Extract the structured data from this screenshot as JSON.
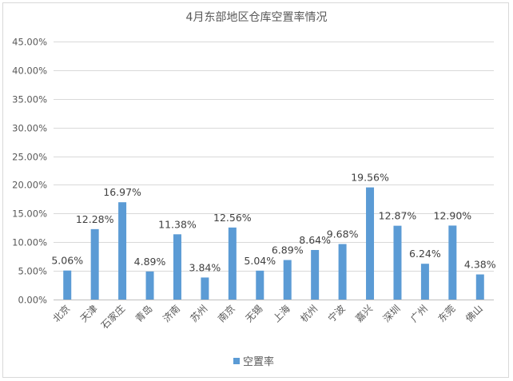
{
  "chart_data": {
    "type": "bar",
    "title": "4月东部地区仓库空置率情况",
    "xlabel": "",
    "ylabel": "",
    "ylim": [
      0,
      45
    ],
    "y_ticks": [
      "0.00%",
      "5.00%",
      "10.00%",
      "15.00%",
      "20.00%",
      "25.00%",
      "30.00%",
      "35.00%",
      "40.00%",
      "45.00%"
    ],
    "y_tick_values": [
      0,
      5,
      10,
      15,
      20,
      25,
      30,
      35,
      40,
      45
    ],
    "categories": [
      "北京",
      "天津",
      "石家庄",
      "青岛",
      "济南",
      "苏州",
      "南京",
      "无锡",
      "上海",
      "杭州",
      "宁波",
      "嘉兴",
      "深圳",
      "广州",
      "东莞",
      "佛山"
    ],
    "series": [
      {
        "name": "空置率",
        "values": [
          5.06,
          12.28,
          16.97,
          4.89,
          11.38,
          3.84,
          12.56,
          5.04,
          6.89,
          8.64,
          9.68,
          19.56,
          12.87,
          6.24,
          12.9,
          4.38
        ],
        "labels": [
          "5.06%",
          "12.28%",
          "16.97%",
          "4.89%",
          "11.38%",
          "3.84%",
          "12.56%",
          "5.04%",
          "6.89%",
          "8.64%",
          "9.68%",
          "19.56%",
          "12.87%",
          "6.24%",
          "12.90%",
          "4.38%"
        ],
        "color": "#5b9bd5"
      }
    ],
    "grid": true,
    "legend": "bottom"
  }
}
